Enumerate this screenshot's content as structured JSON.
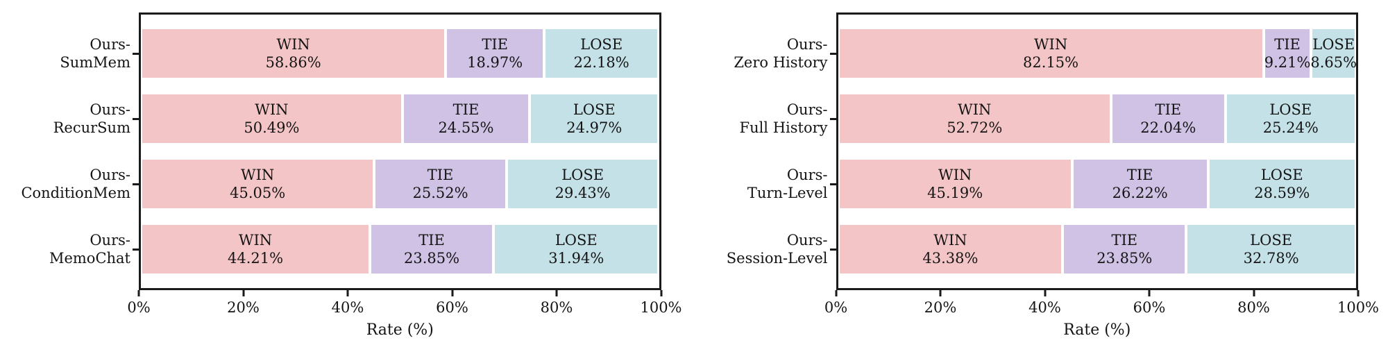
{
  "figure": {
    "background": "#ffffff",
    "text_color": "#141414",
    "spine_color": "#1a1a1a"
  },
  "chart_data": [
    {
      "type": "bar",
      "orientation": "horizontal",
      "stacked": true,
      "title": "",
      "xlabel": "Rate (%)",
      "xlim": [
        0,
        100
      ],
      "xticks": [
        "0%",
        "20%",
        "40%",
        "60%",
        "80%",
        "100%"
      ],
      "grid": false,
      "legend": "none (labels inside segments)",
      "series_names": [
        "WIN",
        "TIE",
        "LOSE"
      ],
      "colors": {
        "WIN": "#f4c5c6",
        "TIE": "#cfc2e5",
        "LOSE": "#c3e1e7"
      },
      "rows": [
        {
          "label_lines": [
            "Ours-",
            "SumMem"
          ],
          "values": {
            "WIN": 58.86,
            "TIE": 18.97,
            "LOSE": 22.18
          }
        },
        {
          "label_lines": [
            "Ours-",
            "RecurSum"
          ],
          "values": {
            "WIN": 50.49,
            "TIE": 24.55,
            "LOSE": 24.97
          }
        },
        {
          "label_lines": [
            "Ours-",
            "ConditionMem"
          ],
          "values": {
            "WIN": 45.05,
            "TIE": 25.52,
            "LOSE": 29.43
          }
        },
        {
          "label_lines": [
            "Ours-",
            "MemoChat"
          ],
          "values": {
            "WIN": 44.21,
            "TIE": 23.85,
            "LOSE": 31.94
          }
        }
      ]
    },
    {
      "type": "bar",
      "orientation": "horizontal",
      "stacked": true,
      "title": "",
      "xlabel": "Rate (%)",
      "xlim": [
        0,
        100
      ],
      "xticks": [
        "0%",
        "20%",
        "40%",
        "60%",
        "80%",
        "100%"
      ],
      "grid": false,
      "legend": "none (labels inside segments)",
      "series_names": [
        "WIN",
        "TIE",
        "LOSE"
      ],
      "colors": {
        "WIN": "#f4c5c6",
        "TIE": "#cfc2e5",
        "LOSE": "#c3e1e7"
      },
      "rows": [
        {
          "label_lines": [
            "Ours-",
            "Zero History"
          ],
          "values": {
            "WIN": 82.15,
            "TIE": 9.21,
            "LOSE": 8.65
          }
        },
        {
          "label_lines": [
            "Ours-",
            "Full History"
          ],
          "values": {
            "WIN": 52.72,
            "TIE": 22.04,
            "LOSE": 25.24
          }
        },
        {
          "label_lines": [
            "Ours-",
            "Turn-Level"
          ],
          "values": {
            "WIN": 45.19,
            "TIE": 26.22,
            "LOSE": 28.59
          }
        },
        {
          "label_lines": [
            "Ours-",
            "Session-Level"
          ],
          "values": {
            "WIN": 43.38,
            "TIE": 23.85,
            "LOSE": 32.78
          }
        }
      ]
    }
  ]
}
